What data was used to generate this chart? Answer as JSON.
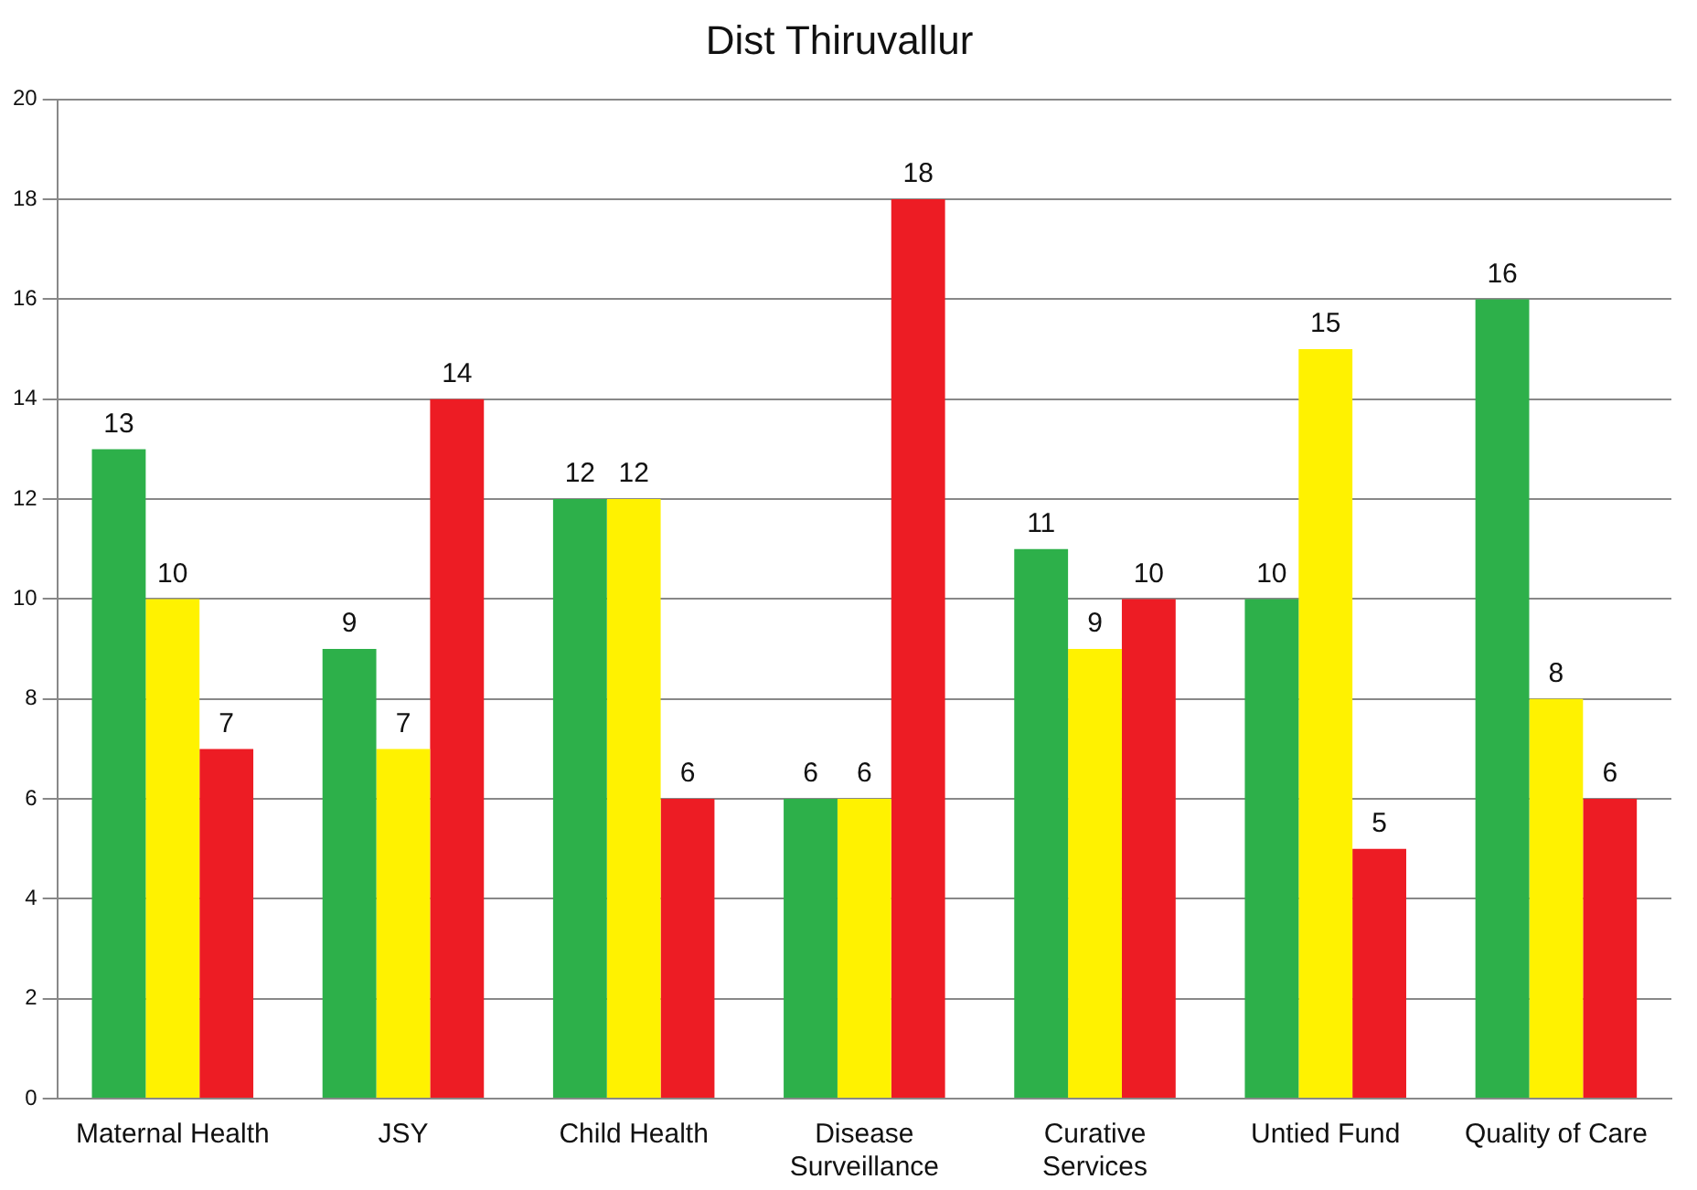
{
  "chart_data": {
    "type": "bar",
    "title": "Dist Thiruvallur",
    "categories": [
      "Maternal Health",
      "JSY",
      "Child Health",
      "Disease Surveillance",
      "Curative Services",
      "Untied Fund",
      "Quality of Care"
    ],
    "series": [
      {
        "color": "#2db04a",
        "values": [
          13,
          9,
          12,
          6,
          11,
          10,
          16
        ]
      },
      {
        "color": "#fff200",
        "values": [
          10,
          7,
          12,
          6,
          9,
          15,
          8
        ]
      },
      {
        "color": "#ed1c24",
        "values": [
          7,
          14,
          6,
          18,
          10,
          5,
          6
        ]
      }
    ],
    "ylim": [
      0,
      20
    ],
    "yticks": [
      0,
      2,
      4,
      6,
      8,
      10,
      12,
      14,
      16,
      18,
      20
    ],
    "grid": "y",
    "data_labels": true
  }
}
